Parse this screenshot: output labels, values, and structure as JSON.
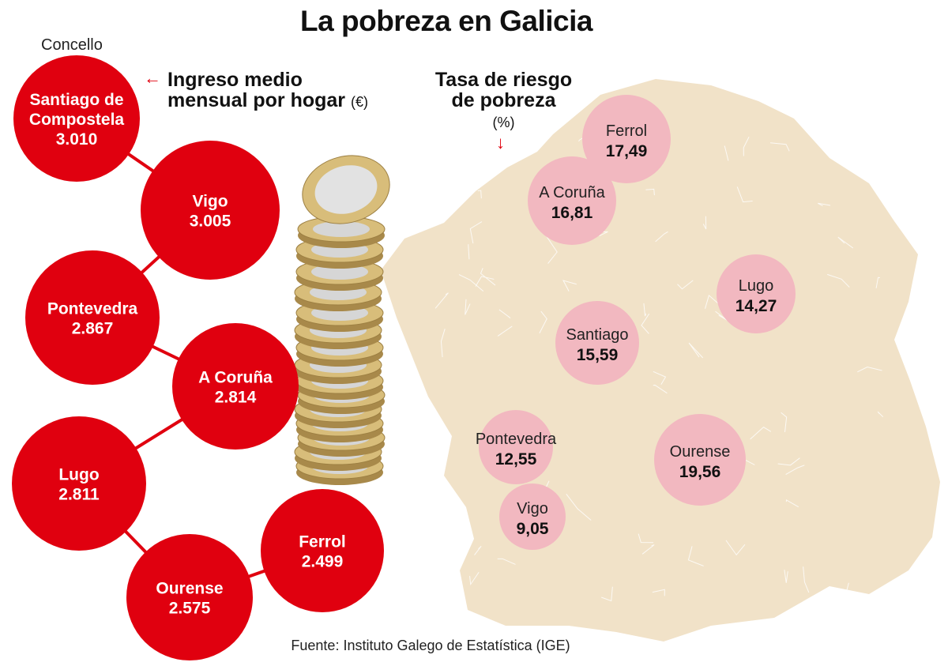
{
  "title": "La pobreza en Galicia",
  "concello_label": "Concello",
  "income_header": {
    "line1": "Ingreso medio",
    "line2": "mensual por hogar",
    "unit": "(€)"
  },
  "risk_header": {
    "line1": "Tasa de riesgo",
    "line2": "de pobreza",
    "unit": "(%)"
  },
  "source": "Fuente: Instituto Galego de Estatística (IGE)",
  "colors": {
    "income_circle": "#e0000f",
    "risk_circle": "#f2b8c0",
    "map": "#f1e2c8",
    "arrow": "#e0000f"
  },
  "chart_data": [
    {
      "type": "bubble",
      "title": "Ingreso medio mensual por hogar (€)",
      "categories": [
        "Santiago de Compostela",
        "Vigo",
        "Pontevedra",
        "A Coruña",
        "Lugo",
        "Ourense",
        "Ferrol"
      ],
      "values": [
        3010,
        3005,
        2867,
        2814,
        2811,
        2575,
        2499
      ],
      "labels": [
        "3.010",
        "3.005",
        "2.867",
        "2.814",
        "2.811",
        "2.575",
        "2.499"
      ]
    },
    {
      "type": "bubble-map",
      "title": "Tasa de riesgo de pobreza (%)",
      "categories": [
        "Ferrol",
        "A Coruña",
        "Lugo",
        "Santiago",
        "Pontevedra",
        "Ourense",
        "Vigo"
      ],
      "values": [
        17.49,
        16.81,
        14.27,
        15.59,
        12.55,
        19.56,
        9.05
      ],
      "labels": [
        "17,49",
        "16,81",
        "14,27",
        "15,59",
        "12,55",
        "19,56",
        "9,05"
      ]
    }
  ]
}
